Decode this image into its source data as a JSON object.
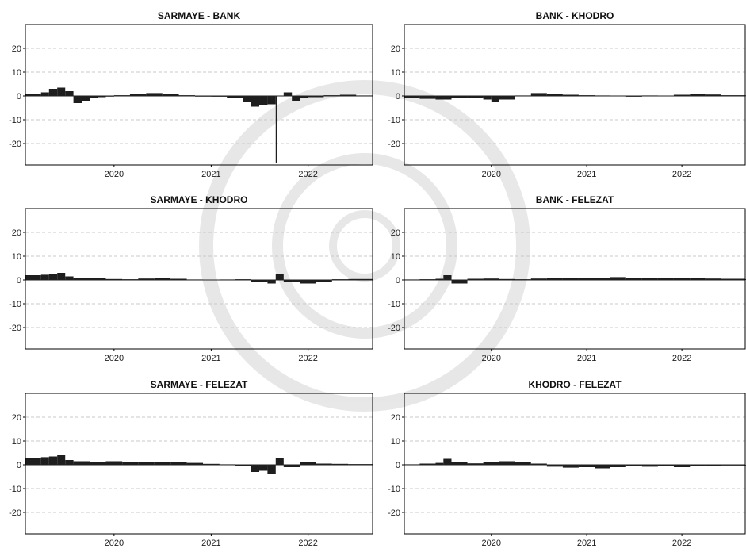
{
  "chart_data": [
    {
      "type": "bar",
      "title": "SARMAYE - BANK",
      "xlabel": "",
      "ylabel": "",
      "x_range": [
        "2019-02-01",
        "2022-09-01"
      ],
      "ylim": [
        -29,
        30
      ],
      "x_ticks": [
        "2020",
        "2021",
        "2022"
      ],
      "y_ticks": [
        20,
        10,
        0,
        -10,
        -20
      ],
      "grid": true,
      "series": [
        {
          "x": [
            "2019-02",
            "2019-04",
            "2019-05",
            "2019-06",
            "2019-07",
            "2019-08",
            "2019-09",
            "2019-10",
            "2019-11",
            "2019-12",
            "2020-01",
            "2020-03",
            "2020-05",
            "2020-07",
            "2020-09",
            "2020-11",
            "2021-01",
            "2021-03",
            "2021-05",
            "2021-06",
            "2021-07",
            "2021-08",
            "2021-09",
            "2021-10",
            "2021-11",
            "2021-12",
            "2022-01",
            "2022-03",
            "2022-05",
            "2022-07",
            "2022-09"
          ],
          "values": [
            1.0,
            1.5,
            3.0,
            3.5,
            2.0,
            -3.0,
            -2.0,
            -1.0,
            -0.5,
            0,
            0.3,
            0.8,
            1.2,
            1.0,
            0.3,
            0,
            -0.3,
            -1.0,
            -2.5,
            -4.5,
            -4.0,
            -3.5,
            -28.0,
            1.5,
            -2.0,
            -1.0,
            -0.5,
            0.3,
            0.5,
            0.2,
            0.1
          ]
        }
      ]
    },
    {
      "type": "bar",
      "title": "BANK - KHODRO",
      "xlabel": "",
      "ylabel": "",
      "x_range": [
        "2019-02-01",
        "2022-09-01"
      ],
      "ylim": [
        -29,
        30
      ],
      "x_ticks": [
        "2020",
        "2021",
        "2022"
      ],
      "y_ticks": [
        20,
        10,
        0,
        -10,
        -20
      ],
      "grid": true,
      "series": [
        {
          "x": [
            "2019-02",
            "2019-04",
            "2019-06",
            "2019-08",
            "2019-10",
            "2019-12",
            "2020-01",
            "2020-02",
            "2020-04",
            "2020-06",
            "2020-08",
            "2020-10",
            "2020-12",
            "2021-02",
            "2021-04",
            "2021-06",
            "2021-08",
            "2021-10",
            "2021-12",
            "2022-02",
            "2022-04",
            "2022-06",
            "2022-09"
          ],
          "values": [
            -1.0,
            -1.2,
            -1.5,
            -1.0,
            -0.8,
            -1.5,
            -2.5,
            -1.5,
            0.2,
            1.2,
            1.0,
            0.5,
            0.3,
            0.2,
            0.1,
            -0.3,
            0.2,
            0.1,
            0.5,
            0.8,
            0.6,
            0.3,
            0.2
          ]
        }
      ]
    },
    {
      "type": "bar",
      "title": "SARMAYE - KHODRO",
      "xlabel": "",
      "ylabel": "",
      "x_range": [
        "2019-02-01",
        "2022-09-01"
      ],
      "ylim": [
        -29,
        30
      ],
      "x_ticks": [
        "2020",
        "2021",
        "2022"
      ],
      "y_ticks": [
        20,
        10,
        0,
        -10,
        -20
      ],
      "grid": true,
      "series": [
        {
          "x": [
            "2019-02",
            "2019-03",
            "2019-04",
            "2019-05",
            "2019-06",
            "2019-07",
            "2019-08",
            "2019-10",
            "2019-12",
            "2020-02",
            "2020-04",
            "2020-06",
            "2020-08",
            "2020-10",
            "2020-12",
            "2021-02",
            "2021-04",
            "2021-06",
            "2021-08",
            "2021-09",
            "2021-10",
            "2021-12",
            "2022-02",
            "2022-04",
            "2022-06",
            "2022-09"
          ],
          "values": [
            2.0,
            2.0,
            2.2,
            2.5,
            3.0,
            1.5,
            1.0,
            0.8,
            0.4,
            0.3,
            0.6,
            0.8,
            0.5,
            0.2,
            0.1,
            0.2,
            0.3,
            -1.0,
            -1.5,
            2.5,
            -1.0,
            -1.5,
            -0.8,
            0.3,
            0.4,
            0.3
          ]
        }
      ]
    },
    {
      "type": "bar",
      "title": "BANK - FELEZAT",
      "xlabel": "",
      "ylabel": "",
      "x_range": [
        "2019-02-01",
        "2022-09-01"
      ],
      "ylim": [
        -29,
        30
      ],
      "x_ticks": [
        "2020",
        "2021",
        "2022"
      ],
      "y_ticks": [
        20,
        10,
        0,
        -10,
        -20
      ],
      "grid": true,
      "series": [
        {
          "x": [
            "2019-02",
            "2019-04",
            "2019-06",
            "2019-07",
            "2019-08",
            "2019-10",
            "2019-12",
            "2020-02",
            "2020-04",
            "2020-06",
            "2020-08",
            "2020-10",
            "2020-12",
            "2021-02",
            "2021-04",
            "2021-06",
            "2021-08",
            "2021-10",
            "2021-12",
            "2022-02",
            "2022-04",
            "2022-06",
            "2022-09"
          ],
          "values": [
            0.2,
            0.3,
            0.5,
            2.0,
            -1.5,
            0.5,
            0.6,
            0.4,
            0.3,
            0.6,
            0.8,
            0.7,
            0.9,
            1.0,
            1.2,
            1.0,
            0.9,
            0.8,
            0.8,
            0.7,
            0.6,
            0.5,
            0.3
          ]
        }
      ]
    },
    {
      "type": "bar",
      "title": "SARMAYE - FELEZAT",
      "xlabel": "",
      "ylabel": "",
      "x_range": [
        "2019-02-01",
        "2022-09-01"
      ],
      "ylim": [
        -29,
        30
      ],
      "x_ticks": [
        "2020",
        "2021",
        "2022"
      ],
      "y_ticks": [
        20,
        10,
        0,
        -10,
        -20
      ],
      "grid": true,
      "series": [
        {
          "x": [
            "2019-02",
            "2019-03",
            "2019-04",
            "2019-05",
            "2019-06",
            "2019-07",
            "2019-08",
            "2019-10",
            "2019-12",
            "2020-02",
            "2020-04",
            "2020-06",
            "2020-08",
            "2020-10",
            "2020-12",
            "2021-02",
            "2021-04",
            "2021-06",
            "2021-07",
            "2021-08",
            "2021-09",
            "2021-10",
            "2021-12",
            "2022-02",
            "2022-04",
            "2022-06",
            "2022-09"
          ],
          "values": [
            3.0,
            3.0,
            3.2,
            3.5,
            4.0,
            2.0,
            1.5,
            1.0,
            1.5,
            1.2,
            1.0,
            1.2,
            1.0,
            0.8,
            0.4,
            0.2,
            -0.5,
            -3.0,
            -2.5,
            -4.0,
            3.0,
            -1.0,
            1.0,
            0.5,
            0.4,
            0.3,
            0.2
          ]
        }
      ]
    },
    {
      "type": "bar",
      "title": "KHODRO - FELEZAT",
      "xlabel": "",
      "ylabel": "",
      "x_range": [
        "2019-02-01",
        "2022-09-01"
      ],
      "ylim": [
        -29,
        30
      ],
      "x_ticks": [
        "2020",
        "2021",
        "2022"
      ],
      "y_ticks": [
        20,
        10,
        0,
        -10,
        -20
      ],
      "grid": true,
      "series": [
        {
          "x": [
            "2019-02",
            "2019-04",
            "2019-06",
            "2019-07",
            "2019-08",
            "2019-10",
            "2019-12",
            "2020-02",
            "2020-04",
            "2020-06",
            "2020-08",
            "2020-10",
            "2020-12",
            "2021-02",
            "2021-04",
            "2021-06",
            "2021-08",
            "2021-10",
            "2021-12",
            "2022-02",
            "2022-04",
            "2022-06",
            "2022-09"
          ],
          "values": [
            0.2,
            0.5,
            0.8,
            2.5,
            1.0,
            0.6,
            1.2,
            1.5,
            1.0,
            0.5,
            -0.8,
            -1.2,
            -1.0,
            -1.5,
            -1.0,
            -0.5,
            -0.8,
            -0.6,
            -1.0,
            -0.4,
            -0.5,
            -0.3,
            -0.1
          ]
        }
      ]
    }
  ]
}
